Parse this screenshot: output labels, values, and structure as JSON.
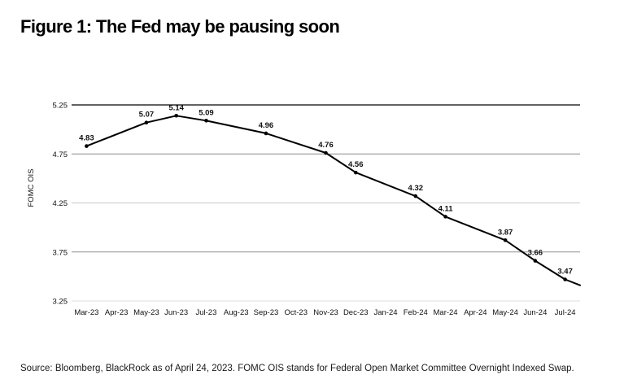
{
  "title": "Figure 1: The Fed may be pausing soon",
  "footer": {
    "source": "Source: Bloomberg, BlackRock as of April 24, 2023. FOMC OIS stands for Federal Open Market Committee Overnight Indexed Swap."
  },
  "chart_data": {
    "type": "line",
    "title": "Figure 1: The Fed may be pausing soon",
    "xlabel": "",
    "ylabel": "FOMC OIS",
    "ylim": [
      3.25,
      5.25
    ],
    "y_ticks": [
      5.25,
      4.75,
      4.25,
      3.75,
      3.25
    ],
    "x_ticks": [
      "Mar-23",
      "Apr-23",
      "May-23",
      "Jun-23",
      "Jul-23",
      "Aug-23",
      "Sep-23",
      "Oct-23",
      "Nov-23",
      "Dec-23",
      "Jan-24",
      "Feb-24",
      "Mar-24",
      "Apr-24",
      "May-24",
      "Jun-24",
      "Jul-24"
    ],
    "grid": "horizontal",
    "legend": "none",
    "line_color": "#000000",
    "marker": "filled-dot",
    "points": [
      {
        "month": "Mar-23",
        "value": 4.83
      },
      {
        "month": "May-23",
        "value": 5.07
      },
      {
        "month": "Jun-23",
        "value": 5.14
      },
      {
        "month": "Jul-23",
        "value": 5.09
      },
      {
        "month": "Sep-23",
        "value": 4.96
      },
      {
        "month": "Nov-23",
        "value": 4.76
      },
      {
        "month": "Dec-23",
        "value": 4.56
      },
      {
        "month": "Feb-24",
        "value": 4.32
      },
      {
        "month": "Mar-24",
        "value": 4.11
      },
      {
        "month": "May-24",
        "value": 3.87
      },
      {
        "month": "Jun-24",
        "value": 3.66
      },
      {
        "month": "Jul-24",
        "value": 3.47
      }
    ],
    "tail": {
      "extends_past_last_tick": true,
      "end_value": 3.41
    }
  }
}
